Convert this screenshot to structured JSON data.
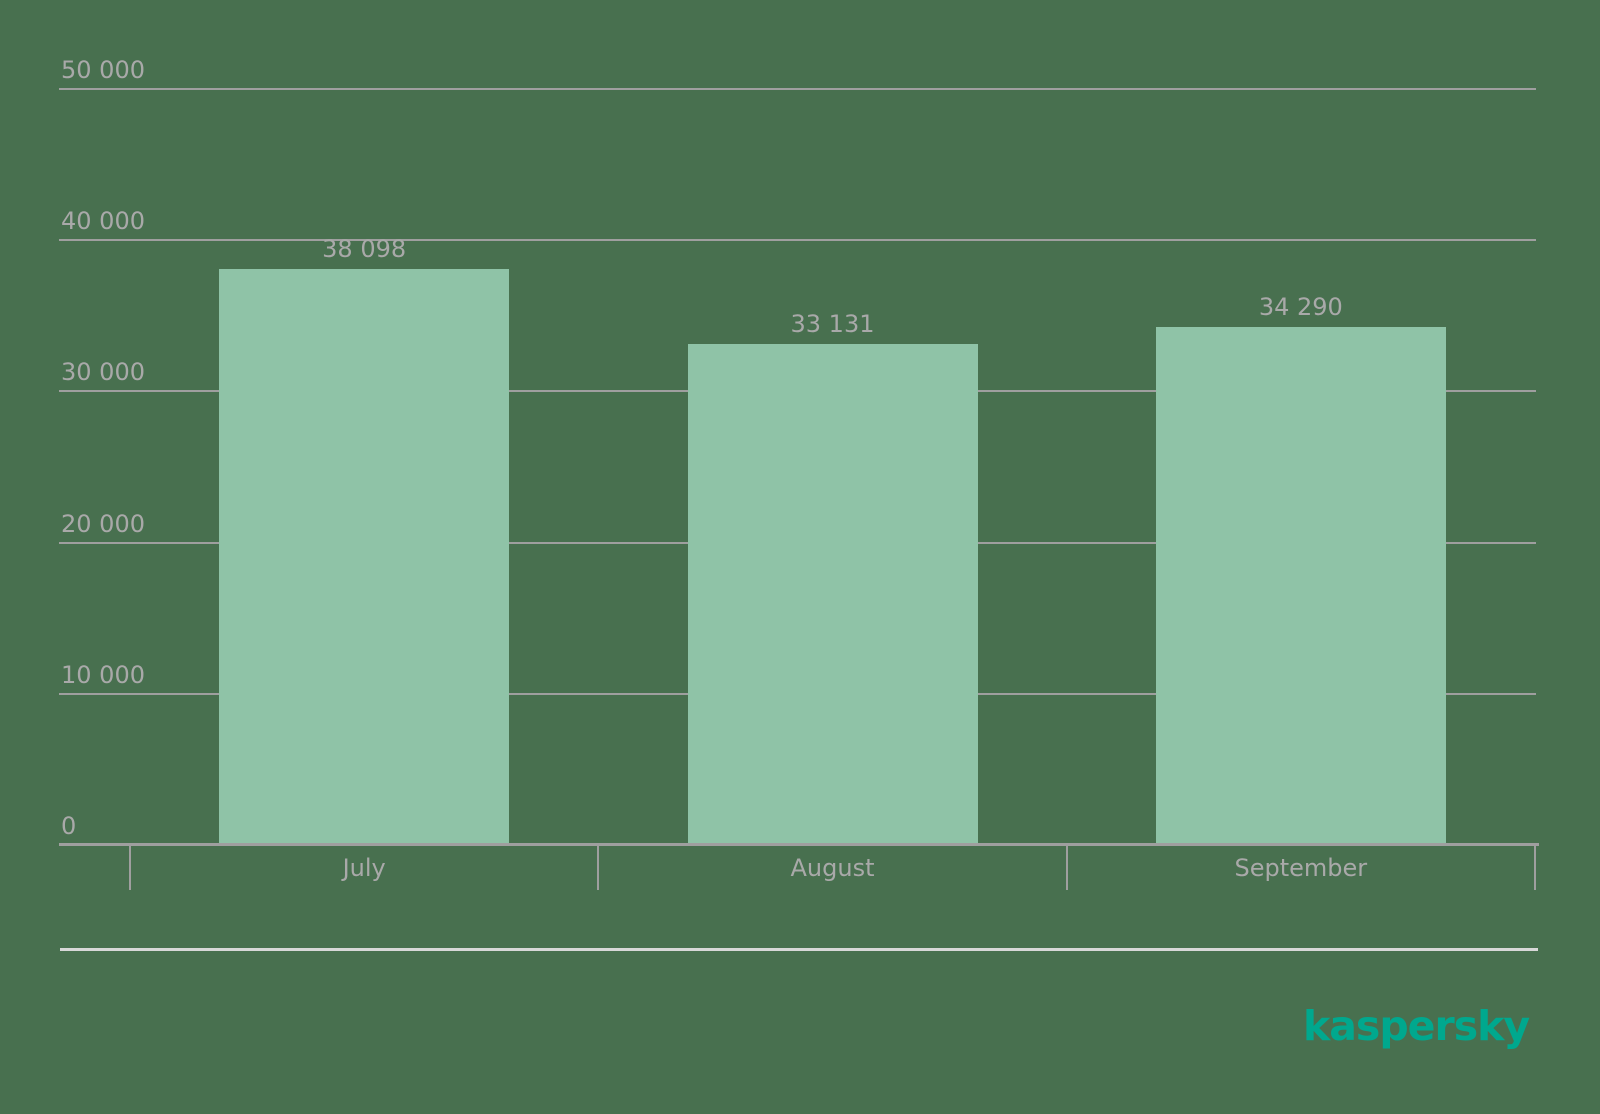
{
  "page": {
    "background_color": "#48704f"
  },
  "chart_data": {
    "type": "bar",
    "title": "",
    "xlabel": "",
    "ylabel": "",
    "categories": [
      "July",
      "August",
      "September"
    ],
    "values": [
      38098,
      33131,
      34290
    ],
    "value_labels": [
      "38 098",
      "33 131",
      "34 290"
    ],
    "ylim": [
      0,
      50000
    ],
    "yticks": [
      0,
      10000,
      20000,
      30000,
      40000,
      50000
    ],
    "ytick_labels": [
      "0",
      "10 000",
      "20 000",
      "30 000",
      "40 000",
      "50 000"
    ],
    "grid": "horizontal gridlines on",
    "legend_position": "none",
    "bar_color": "#8fc3a7",
    "grid_color": "#9f9f9f",
    "axis_color": "#9f9f9f",
    "text_color": "#a9a9a9"
  },
  "footer": {
    "separator_color": "#d8d8d8",
    "logo_text": "kaspersky",
    "logo_color": "#00a88e"
  }
}
